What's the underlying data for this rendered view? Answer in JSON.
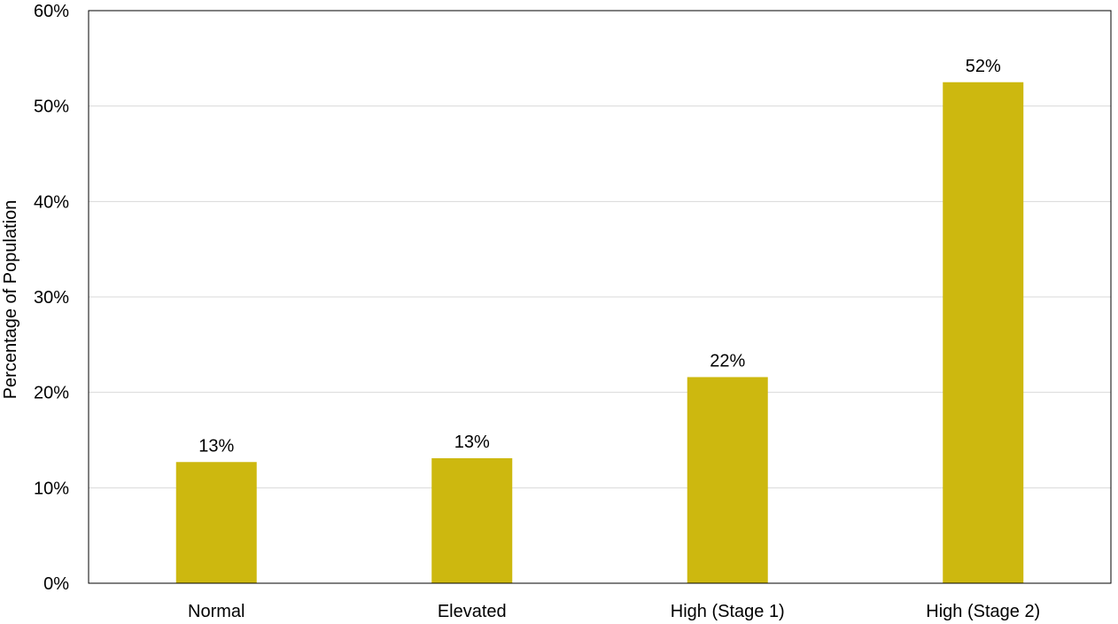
{
  "chart_data": {
    "type": "bar",
    "title": "",
    "xlabel": "",
    "ylabel": "Percentage of Population",
    "categories": [
      "Normal",
      "Elevated",
      "High (Stage 1)",
      "High (Stage 2)"
    ],
    "values": [
      12.7,
      13.1,
      21.6,
      52.5
    ],
    "data_labels": [
      "13%",
      "13%",
      "22%",
      "52%"
    ],
    "ylim": [
      0,
      60
    ],
    "yticks": [
      0,
      10,
      20,
      30,
      40,
      50,
      60
    ],
    "ytick_labels": [
      "0%",
      "10%",
      "20%",
      "30%",
      "40%",
      "50%",
      "60%"
    ],
    "grid": true,
    "legend": "none",
    "bar_color": "#cdb80f",
    "grid_color": "#d9d9d9"
  }
}
